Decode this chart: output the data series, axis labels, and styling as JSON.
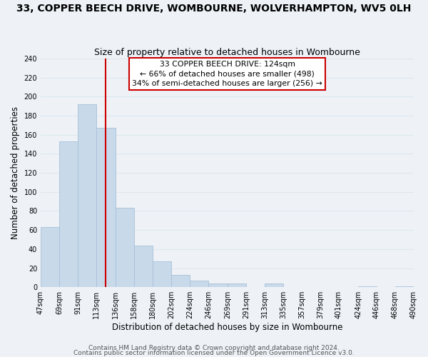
{
  "title": "33, COPPER BEECH DRIVE, WOMBOURNE, WOLVERHAMPTON, WV5 0LH",
  "subtitle": "Size of property relative to detached houses in Wombourne",
  "xlabel": "Distribution of detached houses by size in Wombourne",
  "ylabel": "Number of detached properties",
  "bar_color": "#c8d9ea",
  "bar_edge_color": "#a8c0d8",
  "background_color": "#eef2f7",
  "grid_color": "#dce6f0",
  "ref_line_x": 124,
  "ref_line_color": "#cc0000",
  "annotation_line1": "33 COPPER BEECH DRIVE: 124sqm",
  "annotation_line2": "← 66% of detached houses are smaller (498)",
  "annotation_line3": "34% of semi-detached houses are larger (256) →",
  "annotation_box_color": "#ffffff",
  "annotation_box_edge": "#cc0000",
  "footer1": "Contains HM Land Registry data © Crown copyright and database right 2024.",
  "footer2": "Contains public sector information licensed under the Open Government Licence v3.0.",
  "bins": [
    47,
    69,
    91,
    113,
    136,
    158,
    180,
    202,
    224,
    246,
    269,
    291,
    313,
    335,
    357,
    379,
    401,
    424,
    446,
    468,
    490
  ],
  "values": [
    63,
    153,
    192,
    167,
    83,
    44,
    27,
    13,
    7,
    4,
    4,
    0,
    4,
    0,
    0,
    0,
    0,
    1,
    0,
    1
  ],
  "ylim": [
    0,
    240
  ],
  "yticks": [
    0,
    20,
    40,
    60,
    80,
    100,
    120,
    140,
    160,
    180,
    200,
    220,
    240
  ],
  "title_fontsize": 10,
  "subtitle_fontsize": 9,
  "axis_label_fontsize": 8.5,
  "tick_fontsize": 7,
  "footer_fontsize": 6.5
}
